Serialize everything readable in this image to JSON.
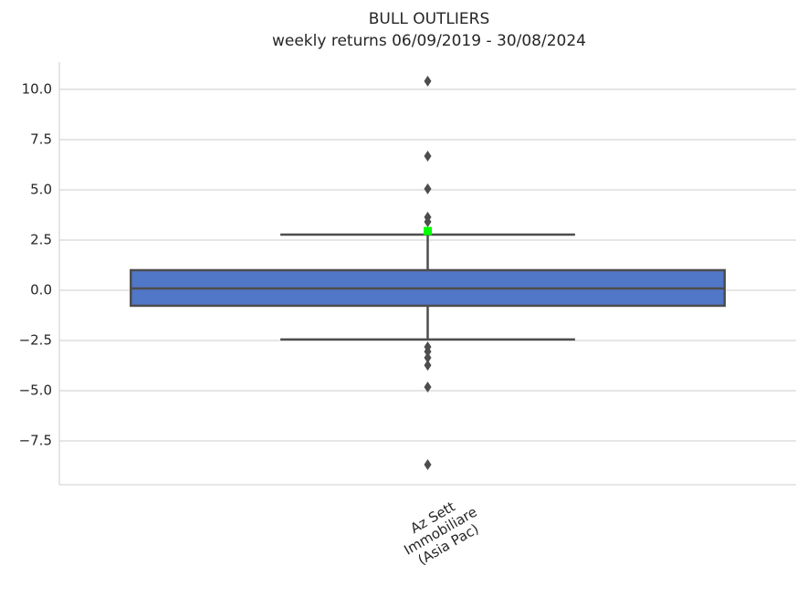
{
  "chart_data": {
    "type": "box",
    "title": "BULL OUTLIERS",
    "subtitle": "weekly returns 06/09/2019 - 30/08/2024",
    "categories": [
      "Az Sett\nImmobiliare\n(Asia Pac)"
    ],
    "boxes": [
      {
        "q1": -0.77,
        "median": 0.09,
        "q3": 1.0,
        "whislo": -2.45,
        "whishi": 2.77,
        "fliers": [
          10.41,
          6.68,
          5.05,
          3.64,
          3.41,
          -2.82,
          -3.05,
          -3.36,
          -3.73,
          -4.82,
          -8.68
        ]
      }
    ],
    "color": "#5177c8",
    "highlight": {
      "value": 2.95,
      "color": "#00ff00"
    },
    "ylim": [
      -9.68,
      11.36
    ],
    "yticks": [
      {
        "value": 10,
        "label": "10.0"
      },
      {
        "value": 7.5,
        "label": "7.5"
      },
      {
        "value": 5,
        "label": "5.0"
      },
      {
        "value": 2.5,
        "label": "2.5"
      },
      {
        "value": 0,
        "label": "0.0"
      },
      {
        "value": -2.5,
        "label": "−2.5"
      },
      {
        "value": -5,
        "label": "−5.0"
      },
      {
        "value": -7.5,
        "label": "−7.5"
      }
    ],
    "grid": true
  }
}
